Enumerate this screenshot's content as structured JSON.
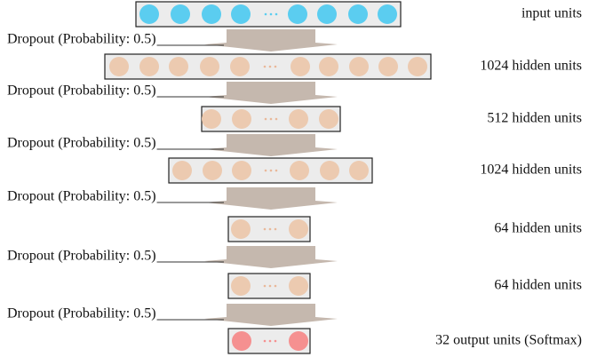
{
  "layers": [
    {
      "label": "input units"
    },
    {
      "label": "1024 hidden units"
    },
    {
      "label": "512 hidden units"
    },
    {
      "label": "1024 hidden units"
    },
    {
      "label": "64 hidden units"
    },
    {
      "label": "64 hidden units"
    },
    {
      "label": "32 output units (Softmax)"
    }
  ],
  "dropouts": [
    {
      "label": "Dropout (Probability: 0.5)"
    },
    {
      "label": "Dropout (Probability: 0.5)"
    },
    {
      "label": "Dropout (Probability: 0.5)"
    },
    {
      "label": "Dropout (Probability: 0.5)"
    },
    {
      "label": "Dropout (Probability: 0.5)"
    },
    {
      "label": "Dropout (Probability: 0.5)"
    }
  ]
}
